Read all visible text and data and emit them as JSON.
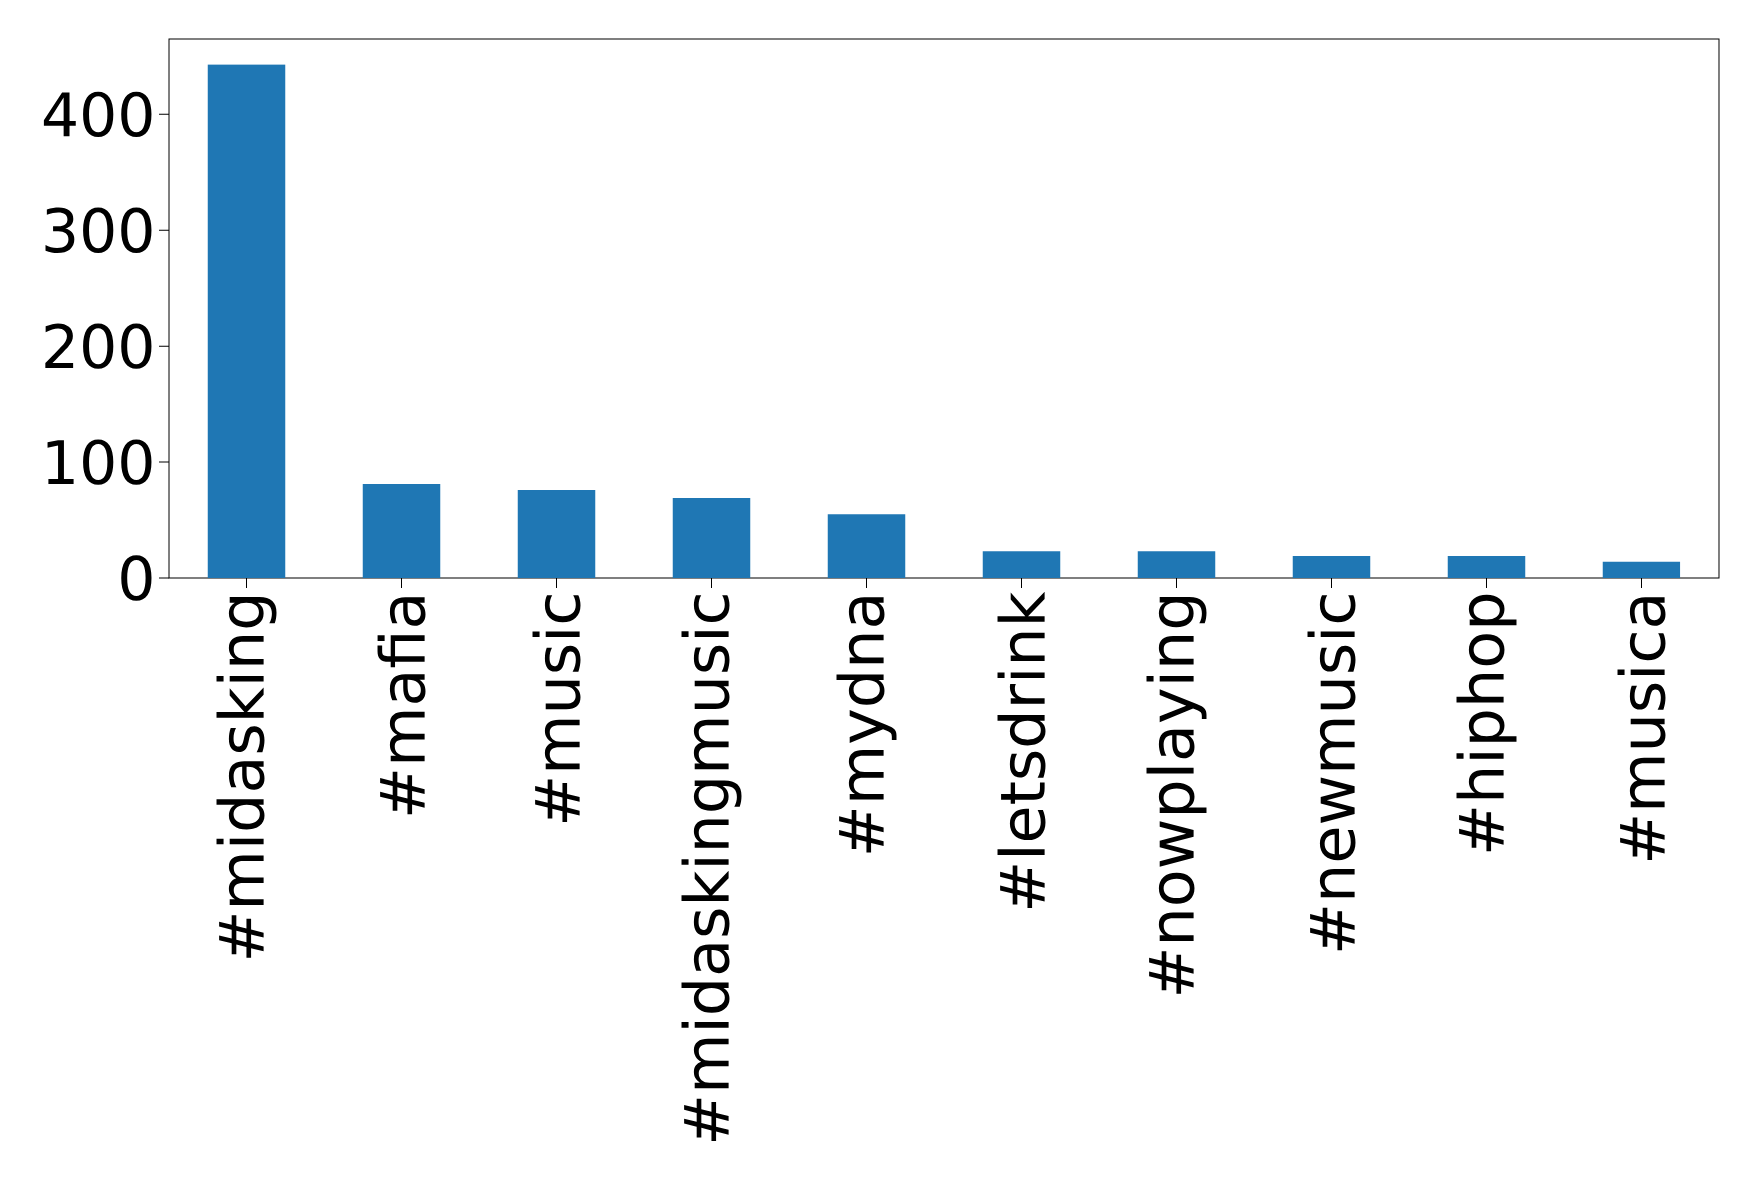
{
  "chart_data": {
    "type": "bar",
    "categories": [
      "#midasking",
      "#mafia",
      "#music",
      "#midaskingmusic",
      "#mydna",
      "#letsdrink",
      "#nowplaying",
      "#newmusic",
      "#hiphop",
      "#musica"
    ],
    "values": [
      443,
      81,
      76,
      69,
      55,
      23,
      23,
      19,
      19,
      14
    ],
    "color": "#1f77b4",
    "ylim": [
      0,
      465
    ],
    "yticks": [
      0,
      100,
      200,
      300,
      400
    ]
  }
}
